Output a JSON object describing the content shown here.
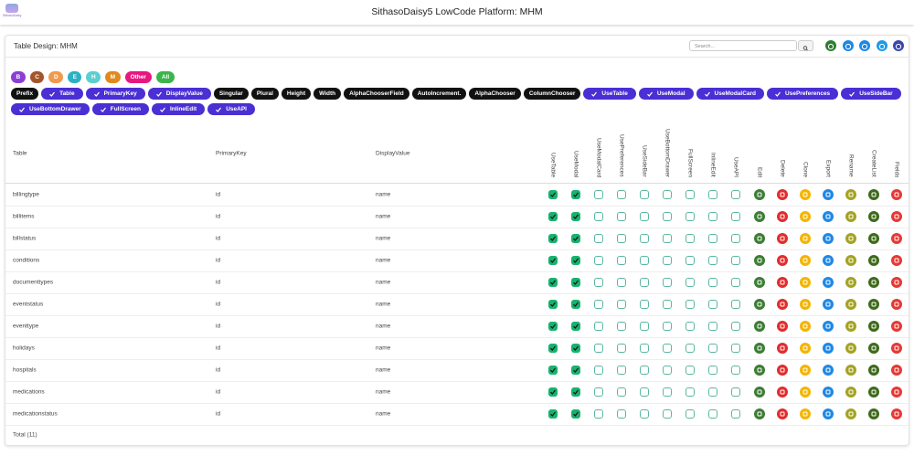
{
  "header": {
    "title": "SithasoDaisy5 LowCode Platform: MHM",
    "logo": "SithasoDaisy"
  },
  "toolbar": {
    "title": "Table Design: MHM",
    "search_placeholder": "Search..."
  },
  "filters": [
    {
      "label": "B",
      "color": "#8b3fd3"
    },
    {
      "label": "C",
      "color": "#a4552c"
    },
    {
      "label": "D",
      "color": "#f29a4c"
    },
    {
      "label": "E",
      "color": "#2bb0c4"
    },
    {
      "label": "H",
      "color": "#5ccfd0"
    },
    {
      "label": "M",
      "color": "#e0891f"
    },
    {
      "label": "Other",
      "color": "#e8177f"
    },
    {
      "label": "All",
      "color": "#3cb54a"
    }
  ],
  "chips": [
    {
      "label": "Prefix",
      "checked": false
    },
    {
      "label": "Table",
      "checked": true
    },
    {
      "label": "PrimaryKey",
      "checked": true
    },
    {
      "label": "DisplayValue",
      "checked": true
    },
    {
      "label": "Singular",
      "checked": false
    },
    {
      "label": "Plural",
      "checked": false
    },
    {
      "label": "Height",
      "checked": false
    },
    {
      "label": "Width",
      "checked": false
    },
    {
      "label": "AlphaChooserField",
      "checked": false
    },
    {
      "label": "AutoIncrement.",
      "checked": false
    },
    {
      "label": "AlphaChooser",
      "checked": false
    },
    {
      "label": "ColumnChooser",
      "checked": false
    },
    {
      "label": "UseTable",
      "checked": true
    },
    {
      "label": "UseModal",
      "checked": true
    },
    {
      "label": "UseModalCard",
      "checked": true
    },
    {
      "label": "UsePreferences",
      "checked": true
    },
    {
      "label": "UseSideBar",
      "checked": true
    },
    {
      "label": "UseBottomDrawer",
      "checked": true
    },
    {
      "label": "FullScreen",
      "checked": true
    },
    {
      "label": "InlineEdit",
      "checked": true
    },
    {
      "label": "UseAPI",
      "checked": true
    }
  ],
  "table": {
    "columns": [
      "Table",
      "PrimaryKey",
      "DisplayValue",
      "UseTable",
      "UseModal",
      "UseModalCard",
      "UsePreferences",
      "UseSideBar",
      "UseBottomDrawer",
      "FullScreen",
      "InlineEdit",
      "UseAPI",
      "Edit",
      "Delete",
      "Clone",
      "Export",
      "Rename",
      "CreateList",
      "Fields"
    ],
    "rows": [
      {
        "cells": [
          "billingtype",
          "id",
          "name"
        ],
        "checks": [
          true,
          true,
          false,
          false,
          false,
          false,
          false,
          false,
          false
        ]
      },
      {
        "cells": [
          "billitems",
          "id",
          "name"
        ],
        "checks": [
          true,
          true,
          false,
          false,
          false,
          false,
          false,
          false,
          false
        ]
      },
      {
        "cells": [
          "billstatus",
          "id",
          "name"
        ],
        "checks": [
          true,
          true,
          false,
          false,
          false,
          false,
          false,
          false,
          false
        ]
      },
      {
        "cells": [
          "conditions",
          "id",
          "name"
        ],
        "checks": [
          true,
          true,
          false,
          false,
          false,
          false,
          false,
          false,
          false
        ]
      },
      {
        "cells": [
          "documenttypes",
          "id",
          "name"
        ],
        "checks": [
          true,
          true,
          false,
          false,
          false,
          false,
          false,
          false,
          false
        ]
      },
      {
        "cells": [
          "eventstatus",
          "id",
          "name"
        ],
        "checks": [
          true,
          true,
          false,
          false,
          false,
          false,
          false,
          false,
          false
        ]
      },
      {
        "cells": [
          "eventtype",
          "id",
          "name"
        ],
        "checks": [
          true,
          true,
          false,
          false,
          false,
          false,
          false,
          false,
          false
        ]
      },
      {
        "cells": [
          "holidays",
          "id",
          "name"
        ],
        "checks": [
          true,
          true,
          false,
          false,
          false,
          false,
          false,
          false,
          false
        ]
      },
      {
        "cells": [
          "hospitals",
          "id",
          "name"
        ],
        "checks": [
          true,
          true,
          false,
          false,
          false,
          false,
          false,
          false,
          false
        ]
      },
      {
        "cells": [
          "medications",
          "id",
          "name"
        ],
        "checks": [
          true,
          true,
          false,
          false,
          false,
          false,
          false,
          false,
          false
        ]
      },
      {
        "cells": [
          "medicationstatus",
          "id",
          "name"
        ],
        "checks": [
          true,
          true,
          false,
          false,
          false,
          false,
          false,
          false,
          false
        ]
      }
    ],
    "footer": "Total (11)"
  }
}
